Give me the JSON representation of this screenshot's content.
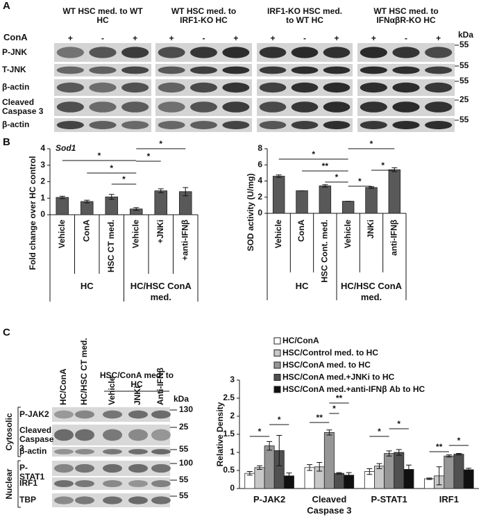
{
  "panel_a": {
    "label": "A",
    "treatment_label": "ConA",
    "kda_label": "kDa",
    "groups": [
      {
        "title": "WT HSC med. to WT HC",
        "treatments": [
          "+",
          "-",
          "+"
        ]
      },
      {
        "title": "WT HSC med. to IRF1-KO HC",
        "treatments": [
          "+",
          "-",
          "+"
        ]
      },
      {
        "title": "IRF1-KO HSC med. to WT HC",
        "treatments": [
          "+",
          "-",
          "+"
        ]
      },
      {
        "title": "WT HSC med. to IFNαβR-KO HC",
        "treatments": [
          "+",
          "-",
          "+"
        ]
      }
    ],
    "rows": [
      {
        "label": "P-JNK",
        "kda": 55
      },
      {
        "label": "T-JNK",
        "kda": 55
      },
      {
        "label": "β-actin",
        "kda": 55
      },
      {
        "label": "Cleaved Caspase 3",
        "kda": 25
      },
      {
        "label": "β-actin",
        "kda": 55
      }
    ]
  },
  "panel_b_label": "B",
  "panel_c": {
    "label": "C",
    "columns": [
      "HC/ConA",
      "HC/HSC CT med.",
      "Vehicle",
      "JNKi",
      "Anti-IFNβ"
    ],
    "column_group": {
      "label": "HSC/ConA med. to HC",
      "span": [
        2,
        4
      ]
    },
    "kda_label": "kDa",
    "fractions": [
      {
        "label": "Cytosolic",
        "rows": [
          {
            "label": "P-JAK2",
            "kda": 130
          },
          {
            "label": "Cleaved Caspase 3",
            "kda": 25
          },
          {
            "label": "β-actin",
            "kda": 55
          }
        ]
      },
      {
        "label": "Nuclear",
        "rows": [
          {
            "label": "P-STAT1",
            "kda": 100
          },
          {
            "label": "IRF1",
            "kda": 55
          },
          {
            "label": "TBP",
            "kda": 55
          }
        ]
      }
    ]
  },
  "chart_data": [
    {
      "type": "bar",
      "title": "Sod1",
      "y_label": "Fold change over HC control",
      "categories": [
        "Vehicle",
        "ConA",
        "HSC CT med.",
        "Vehicle",
        "+JNKi",
        "+anti-IFNβ"
      ],
      "category_groups": [
        {
          "label": "HC",
          "span": [
            0,
            2
          ]
        },
        {
          "label": "HC/HSC ConA med.",
          "span": [
            3,
            5
          ]
        }
      ],
      "series": [
        {
          "color": "#595959",
          "values": [
            1.05,
            0.8,
            1.08,
            0.35,
            1.45,
            1.4
          ],
          "errors": [
            0.07,
            0.08,
            0.15,
            0.08,
            0.12,
            0.25
          ]
        }
      ],
      "ylim": [
        0,
        4
      ],
      "yticks": [
        0,
        1,
        2,
        3,
        4
      ],
      "annotations": [
        {
          "text": "*",
          "between": [
            0,
            3
          ]
        },
        {
          "text": "*",
          "between": [
            3,
            5
          ]
        },
        {
          "text": "*",
          "between": [
            1,
            3
          ]
        },
        {
          "text": "*",
          "between": [
            3,
            4
          ]
        },
        {
          "text": "*",
          "between": [
            2,
            3
          ]
        }
      ]
    },
    {
      "type": "bar",
      "y_label": "SOD activity (U/mg)",
      "categories": [
        "Vehicle",
        "ConA",
        "HSC Cont. med.",
        "Vehicle",
        "JNKi",
        "anti-IFNβ"
      ],
      "category_groups": [
        {
          "label": "HC",
          "span": [
            0,
            2
          ]
        },
        {
          "label": "HC/HSC ConA med.",
          "span": [
            3,
            5
          ]
        }
      ],
      "series": [
        {
          "color": "#595959",
          "values": [
            4.6,
            2.8,
            3.4,
            1.5,
            3.2,
            5.4
          ],
          "errors": [
            0.15,
            0,
            0.15,
            0,
            0.1,
            0.25
          ]
        }
      ],
      "ylim": [
        0,
        8
      ],
      "yticks": [
        0,
        2,
        4,
        6,
        8
      ],
      "annotations": [
        {
          "text": "*",
          "between": [
            0,
            3
          ]
        },
        {
          "text": "*",
          "between": [
            3,
            5
          ]
        },
        {
          "text": "**",
          "between": [
            1,
            3
          ]
        },
        {
          "text": "*",
          "between": [
            2,
            3
          ]
        },
        {
          "text": "*",
          "between": [
            3,
            4
          ]
        },
        {
          "text": "*",
          "between": [
            4,
            5
          ]
        }
      ]
    },
    {
      "type": "bar",
      "y_label": "Relative Density",
      "categories": [
        "P-JAK2",
        "Cleaved Caspase 3",
        "P-STAT1",
        "IRF1"
      ],
      "series": [
        {
          "name": "HC/ConA",
          "color": "#ffffff",
          "values": [
            0.42,
            0.58,
            0.47,
            0.27
          ],
          "errors": [
            0.05,
            0.08,
            0.08,
            0.02
          ]
        },
        {
          "name": "HSC/Control med. to HC",
          "color": "#c8c8c8",
          "values": [
            0.58,
            0.6,
            0.62,
            0.35
          ],
          "errors": [
            0.05,
            0.12,
            0.07,
            0.25
          ]
        },
        {
          "name": "HSC/ConA med. to HC",
          "color": "#969696",
          "values": [
            1.18,
            1.55,
            0.97,
            0.9
          ],
          "errors": [
            0.12,
            0.07,
            0.07,
            0.03
          ]
        },
        {
          "name": "HSC/ConA med.+JNKi to HC",
          "color": "#505050",
          "values": [
            1.05,
            0.42,
            1.0,
            0.95
          ],
          "errors": [
            0.42,
            0.02,
            0.08,
            0.02
          ]
        },
        {
          "name": "HSC/ConA med.+anti-IFNβ Ab to HC",
          "color": "#101010",
          "values": [
            0.35,
            0.37,
            0.53,
            0.52
          ],
          "errors": [
            0.08,
            0.07,
            0.12,
            0.04
          ]
        }
      ],
      "ylim": [
        0,
        3
      ],
      "yticks": [
        0,
        0.5,
        1,
        1.5,
        2,
        2.5,
        3
      ],
      "annotations": [
        {
          "text": "*",
          "category": 0,
          "between": [
            0,
            2
          ]
        },
        {
          "text": "*",
          "category": 0,
          "between": [
            2,
            4
          ]
        },
        {
          "text": "**",
          "category": 1,
          "between": [
            0,
            2
          ]
        },
        {
          "text": "*",
          "category": 1,
          "between": [
            2,
            3
          ]
        },
        {
          "text": "**",
          "category": 1,
          "between": [
            2,
            4
          ]
        },
        {
          "text": "*",
          "category": 2,
          "between": [
            0,
            2
          ]
        },
        {
          "text": "*",
          "category": 2,
          "between": [
            2,
            4
          ]
        },
        {
          "text": "**",
          "category": 3,
          "between": [
            0,
            2
          ]
        },
        {
          "text": "*",
          "category": 3,
          "between": [
            2,
            4
          ]
        }
      ]
    }
  ]
}
